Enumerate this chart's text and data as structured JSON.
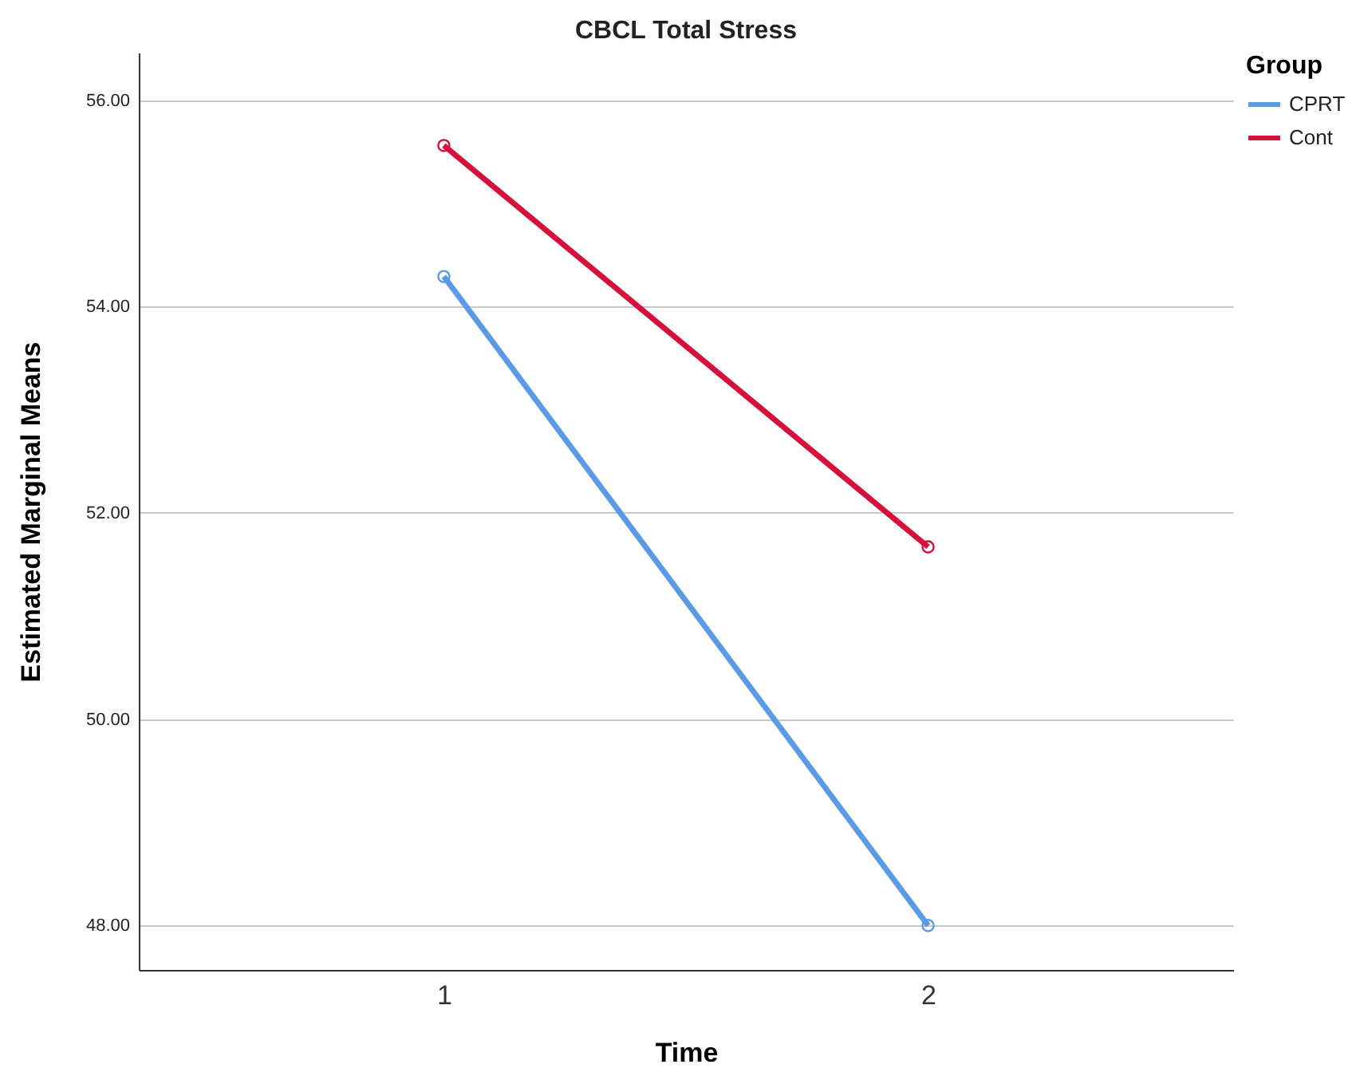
{
  "chart_data": {
    "type": "line",
    "title": "CBCL Total Stress",
    "xlabel": "Time",
    "ylabel": "Estimated Marginal Means",
    "legend_title": "Group",
    "categories": [
      "1",
      "2"
    ],
    "series": [
      {
        "name": "CPRT",
        "color": "#5b9be6",
        "values": [
          54.29,
          48.0
        ]
      },
      {
        "name": "Cont",
        "color": "#d5113b",
        "values": [
          55.56,
          51.67
        ]
      }
    ],
    "ylim": [
      47.57,
      56.46
    ],
    "yticks": [
      {
        "value": 48,
        "label": "48.00"
      },
      {
        "value": 50,
        "label": "50.00"
      },
      {
        "value": 52,
        "label": "52.00"
      },
      {
        "value": 54,
        "label": "54.00"
      },
      {
        "value": 56,
        "label": "56.00"
      }
    ],
    "grid": "y",
    "legend": "top right",
    "marker": "circle",
    "line_style": "solid"
  }
}
